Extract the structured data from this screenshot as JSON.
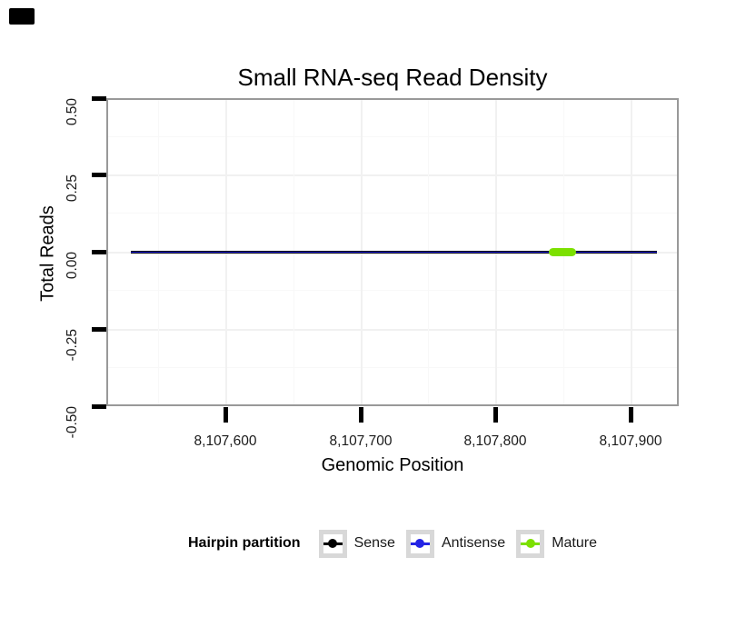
{
  "figure": {
    "title": "Small RNA-seq Read Density",
    "x_axis": {
      "label": "Genomic Position",
      "ticks": [
        "8,107,600",
        "8,107,700",
        "8,107,800",
        "8,107,900"
      ]
    },
    "y_axis": {
      "label": "Total Reads",
      "ticks": [
        "0.50",
        "0.25",
        "0.00",
        "-0.25",
        "-0.50"
      ]
    },
    "legend": {
      "title": "Hairpin partition",
      "items": [
        {
          "label": "Sense",
          "color": "#000000"
        },
        {
          "label": "Antisense",
          "color": "#2424E4"
        },
        {
          "label": "Mature",
          "color": "#7CE000"
        }
      ]
    }
  },
  "colors": {
    "corner_marker": "#000000",
    "panel_border": "#999999",
    "sense_line": "#000000",
    "antisense_line": "#2424E4",
    "mature_segment": "#7CE000"
  },
  "chart_data": {
    "type": "line",
    "title": "Small RNA-seq Read Density",
    "xlabel": "Genomic Position",
    "ylabel": "Total Reads",
    "xlim": [
      8107512,
      8107936
    ],
    "ylim": [
      -0.5,
      0.5
    ],
    "x_ticks": [
      8107600,
      8107700,
      8107800,
      8107900
    ],
    "y_ticks": [
      0.5,
      0.25,
      0.0,
      -0.25,
      -0.5
    ],
    "grid": "major and minor gridlines, very light gray on white panel",
    "legend_position": "bottom",
    "legend_title": "Hairpin partition",
    "series": [
      {
        "name": "Sense",
        "color": "#000000",
        "x_start": 8107530,
        "x_end": 8107920,
        "y": 0
      },
      {
        "name": "Antisense",
        "color": "#2424E4",
        "x_start": 8107530,
        "x_end": 8107920,
        "y": 0
      },
      {
        "name": "Mature",
        "color": "#7CE000",
        "x_start": 8107840,
        "x_end": 8107860,
        "y": 0
      }
    ]
  }
}
